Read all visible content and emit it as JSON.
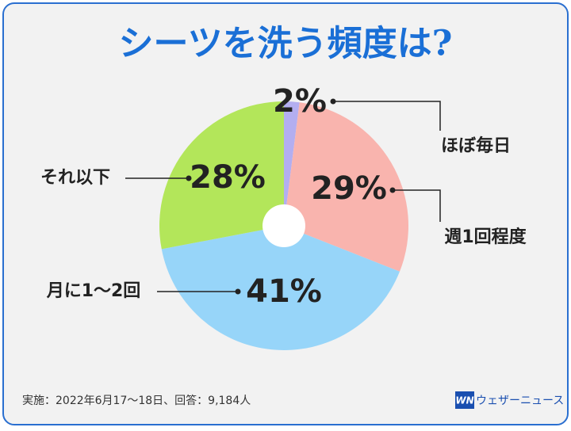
{
  "chart_data": {
    "type": "pie",
    "title": "シーツを洗う頻度は?",
    "categories": [
      "ほぼ毎日",
      "週1回程度",
      "月に1～2回",
      "それ以下"
    ],
    "values": [
      2,
      29,
      41,
      28
    ],
    "value_labels": [
      "2%",
      "29%",
      "41%",
      "28%"
    ],
    "colors": [
      "#b3aef0",
      "#f9b4ae",
      "#97d5f9",
      "#b3e65a"
    ],
    "footnote": "実施：2022年6月17～18日、回答：9,184人",
    "logo": "WN",
    "brand": "ウェザーニュース"
  }
}
